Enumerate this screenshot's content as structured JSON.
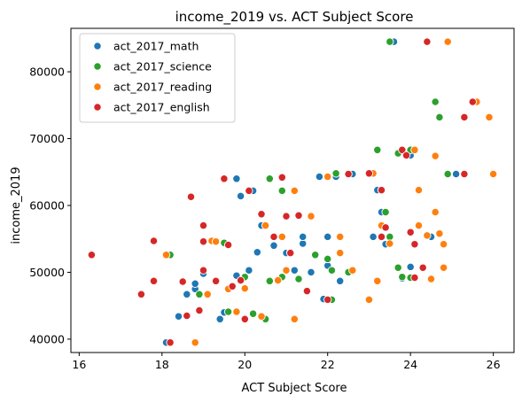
{
  "chart_data": {
    "type": "scatter",
    "title": "income_2019 vs. ACT Subject Score",
    "xlabel": "ACT Subject Score",
    "ylabel": "income_2019",
    "xlim": [
      15.8,
      26.5
    ],
    "ylim": [
      38000,
      86500
    ],
    "xticks": [
      16,
      18,
      20,
      22,
      24,
      26
    ],
    "yticks": [
      40000,
      50000,
      60000,
      70000,
      80000
    ],
    "grid": false,
    "legend_position": "top-left",
    "series": [
      {
        "name": "act_2017_math",
        "color": "#1f77b4",
        "points": [
          [
            18.1,
            39500
          ],
          [
            19.4,
            43000
          ],
          [
            19.5,
            44000
          ],
          [
            18.4,
            43400
          ],
          [
            18.6,
            46700
          ],
          [
            18.8,
            47500
          ],
          [
            18.8,
            48300
          ],
          [
            19.0,
            49800
          ],
          [
            19.8,
            49500
          ],
          [
            20.1,
            50300
          ],
          [
            20.3,
            53000
          ],
          [
            20.4,
            57000
          ],
          [
            19.8,
            64000
          ],
          [
            19.9,
            61400
          ],
          [
            20.2,
            62200
          ],
          [
            20.7,
            54000
          ],
          [
            21.0,
            52900
          ],
          [
            21.2,
            50300
          ],
          [
            21.4,
            54300
          ],
          [
            21.4,
            55300
          ],
          [
            21.6,
            50000
          ],
          [
            21.9,
            46000
          ],
          [
            22.0,
            51000
          ],
          [
            21.8,
            64300
          ],
          [
            22.2,
            64300
          ],
          [
            22.6,
            64700
          ],
          [
            22.3,
            48700
          ],
          [
            23.2,
            62300
          ],
          [
            23.3,
            59000
          ],
          [
            23.4,
            54200
          ],
          [
            23.8,
            49100
          ],
          [
            24.0,
            50800
          ],
          [
            24.0,
            67500
          ],
          [
            24.5,
            55300
          ],
          [
            25.1,
            64700
          ],
          [
            25.3,
            73200
          ],
          [
            23.1,
            55300
          ],
          [
            23.6,
            84500
          ],
          [
            22.0,
            55300
          ]
        ]
      },
      {
        "name": "act_2017_science",
        "color": "#2ca02c",
        "points": [
          [
            18.2,
            52600
          ],
          [
            18.9,
            46700
          ],
          [
            19.3,
            48700
          ],
          [
            19.5,
            54400
          ],
          [
            19.6,
            44100
          ],
          [
            20.0,
            49300
          ],
          [
            20.2,
            43800
          ],
          [
            20.5,
            43000
          ],
          [
            20.6,
            48700
          ],
          [
            20.6,
            64000
          ],
          [
            20.9,
            62200
          ],
          [
            20.9,
            49300
          ],
          [
            21.3,
            49000
          ],
          [
            21.3,
            58400
          ],
          [
            21.7,
            52600
          ],
          [
            22.1,
            45900
          ],
          [
            22.1,
            50300
          ],
          [
            22.2,
            64800
          ],
          [
            22.5,
            50000
          ],
          [
            23.2,
            68300
          ],
          [
            23.4,
            59000
          ],
          [
            23.5,
            55300
          ],
          [
            23.7,
            50700
          ],
          [
            23.8,
            49300
          ],
          [
            24.0,
            49200
          ],
          [
            24.0,
            68300
          ],
          [
            24.6,
            75500
          ],
          [
            24.7,
            73200
          ],
          [
            24.9,
            64700
          ],
          [
            23.5,
            84500
          ],
          [
            23.7,
            67800
          ],
          [
            22.0,
            52000
          ]
        ]
      },
      {
        "name": "act_2017_reading",
        "color": "#ff7f0e",
        "points": [
          [
            18.1,
            52600
          ],
          [
            18.8,
            39500
          ],
          [
            19.1,
            46700
          ],
          [
            19.2,
            54700
          ],
          [
            19.6,
            47500
          ],
          [
            19.8,
            44100
          ],
          [
            19.9,
            48700
          ],
          [
            20.0,
            47600
          ],
          [
            20.4,
            43400
          ],
          [
            20.5,
            57000
          ],
          [
            20.8,
            48800
          ],
          [
            20.9,
            64200
          ],
          [
            21.0,
            50300
          ],
          [
            21.1,
            53000
          ],
          [
            21.2,
            43000
          ],
          [
            21.2,
            62200
          ],
          [
            21.6,
            58400
          ],
          [
            22.0,
            64300
          ],
          [
            22.3,
            55300
          ],
          [
            22.3,
            52900
          ],
          [
            22.6,
            50300
          ],
          [
            23.0,
            45900
          ],
          [
            23.2,
            48700
          ],
          [
            23.1,
            64800
          ],
          [
            23.3,
            57000
          ],
          [
            23.5,
            54300
          ],
          [
            24.0,
            56000
          ],
          [
            24.1,
            68300
          ],
          [
            24.2,
            62300
          ],
          [
            24.4,
            55500
          ],
          [
            24.5,
            49000
          ],
          [
            24.7,
            55800
          ],
          [
            24.8,
            50700
          ],
          [
            24.8,
            54200
          ],
          [
            24.9,
            84500
          ],
          [
            25.6,
            75500
          ],
          [
            25.9,
            73200
          ],
          [
            26.0,
            64700
          ],
          [
            24.6,
            67400
          ],
          [
            24.6,
            59000
          ],
          [
            24.2,
            57000
          ],
          [
            19.3,
            54600
          ],
          [
            20.9,
            55300
          ]
        ]
      },
      {
        "name": "act_2017_english",
        "color": "#d62728",
        "points": [
          [
            16.3,
            52600
          ],
          [
            17.5,
            46700
          ],
          [
            17.8,
            54700
          ],
          [
            17.8,
            48700
          ],
          [
            18.2,
            39500
          ],
          [
            18.5,
            48600
          ],
          [
            18.6,
            43500
          ],
          [
            18.7,
            61300
          ],
          [
            18.9,
            44300
          ],
          [
            19.0,
            50300
          ],
          [
            19.0,
            57000
          ],
          [
            19.0,
            54600
          ],
          [
            19.3,
            48700
          ],
          [
            19.5,
            64000
          ],
          [
            19.6,
            54100
          ],
          [
            19.7,
            47900
          ],
          [
            19.9,
            48800
          ],
          [
            20.0,
            43000
          ],
          [
            20.1,
            62200
          ],
          [
            20.4,
            58700
          ],
          [
            20.7,
            55300
          ],
          [
            21.0,
            58400
          ],
          [
            20.9,
            64200
          ],
          [
            21.1,
            52900
          ],
          [
            21.3,
            58500
          ],
          [
            21.5,
            47200
          ],
          [
            22.0,
            45900
          ],
          [
            22.5,
            64700
          ],
          [
            23.0,
            64800
          ],
          [
            23.3,
            55300
          ],
          [
            23.4,
            56700
          ],
          [
            23.8,
            68300
          ],
          [
            23.9,
            67500
          ],
          [
            24.0,
            56000
          ],
          [
            24.1,
            54200
          ],
          [
            24.1,
            49200
          ],
          [
            24.3,
            50700
          ],
          [
            24.4,
            84500
          ],
          [
            25.3,
            64700
          ],
          [
            25.5,
            75500
          ],
          [
            25.3,
            73200
          ],
          [
            23.3,
            62300
          ]
        ]
      }
    ]
  }
}
